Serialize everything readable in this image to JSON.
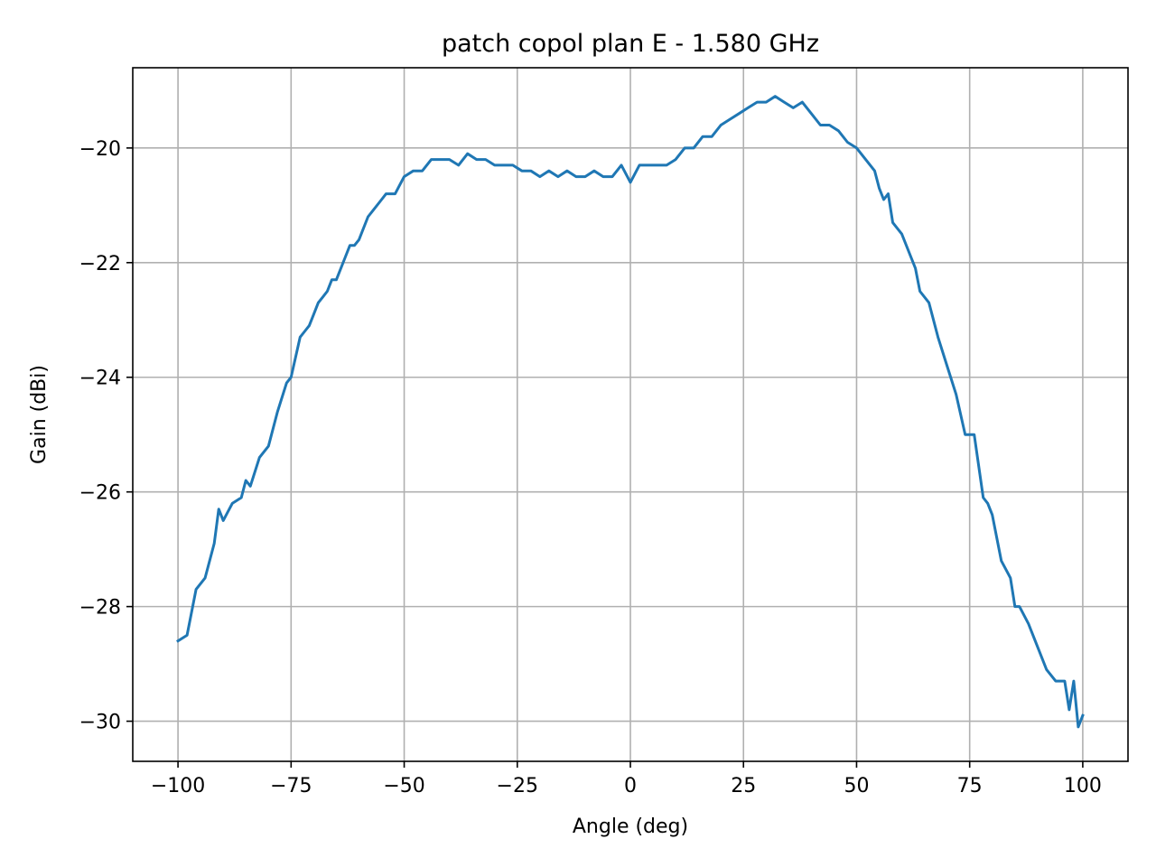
{
  "chart_data": {
    "type": "line",
    "title": "patch copol plan E - 1.580 GHz",
    "xlabel": "Angle (deg)",
    "ylabel": "Gain (dBi)",
    "xlim": [
      -110,
      110
    ],
    "ylim": [
      -30.7,
      -18.6
    ],
    "xticks": [
      -100,
      -75,
      -50,
      -25,
      0,
      25,
      50,
      75,
      100
    ],
    "xtick_labels": [
      "−100",
      "−75",
      "−50",
      "−25",
      "0",
      "25",
      "50",
      "75",
      "100"
    ],
    "yticks": [
      -30,
      -28,
      -26,
      -24,
      -22,
      -20
    ],
    "ytick_labels": [
      "−30",
      "−28",
      "−26",
      "−24",
      "−22",
      "−20"
    ],
    "grid": true,
    "series": [
      {
        "color": "#1f77b4",
        "x": [
          -100,
          -98,
          -96,
          -94,
          -92,
          -91,
          -90,
          -88,
          -86,
          -85,
          -84,
          -82,
          -80,
          -78,
          -76,
          -75,
          -73,
          -72,
          -71,
          -70,
          -69,
          -68,
          -67,
          -66,
          -65,
          -63,
          -62,
          -61,
          -60,
          -58,
          -57,
          -55,
          -54,
          -52,
          -50,
          -48,
          -46,
          -44,
          -42,
          -40,
          -38,
          -36,
          -34,
          -32,
          -30,
          -28,
          -26,
          -24,
          -22,
          -20,
          -18,
          -16,
          -14,
          -12,
          -10,
          -8,
          -6,
          -4,
          -2,
          0,
          2,
          4,
          6,
          8,
          10,
          12,
          14,
          16,
          18,
          20,
          22,
          24,
          26,
          28,
          30,
          32,
          34,
          36,
          38,
          40,
          42,
          44,
          46,
          48,
          50,
          52,
          54,
          55,
          56,
          57,
          58,
          60,
          62,
          63,
          64,
          66,
          68,
          70,
          72,
          74,
          76,
          78,
          79,
          80,
          82,
          84,
          85,
          86,
          88,
          90,
          92,
          94,
          96,
          97,
          98,
          99,
          100
        ],
        "values": [
          -28.6,
          -28.5,
          -27.7,
          -27.5,
          -26.9,
          -26.3,
          -26.5,
          -26.2,
          -26.1,
          -25.8,
          -25.9,
          -25.4,
          -25.2,
          -24.6,
          -24.1,
          -24.0,
          -23.3,
          -23.2,
          -23.1,
          -22.9,
          -22.7,
          -22.6,
          -22.5,
          -22.3,
          -22.3,
          -21.9,
          -21.7,
          -21.7,
          -21.6,
          -21.2,
          -21.1,
          -20.9,
          -20.8,
          -20.8,
          -20.5,
          -20.4,
          -20.4,
          -20.2,
          -20.2,
          -20.2,
          -20.3,
          -20.1,
          -20.2,
          -20.2,
          -20.3,
          -20.3,
          -20.3,
          -20.4,
          -20.4,
          -20.5,
          -20.4,
          -20.5,
          -20.4,
          -20.5,
          -20.5,
          -20.4,
          -20.5,
          -20.5,
          -20.3,
          -20.6,
          -20.3,
          -20.3,
          -20.3,
          -20.3,
          -20.2,
          -20.0,
          -20.0,
          -19.8,
          -19.8,
          -19.6,
          -19.5,
          -19.4,
          -19.3,
          -19.2,
          -19.2,
          -19.1,
          -19.2,
          -19.3,
          -19.2,
          -19.4,
          -19.6,
          -19.6,
          -19.7,
          -19.9,
          -20.0,
          -20.2,
          -20.4,
          -20.7,
          -20.9,
          -20.8,
          -21.3,
          -21.5,
          -21.9,
          -22.1,
          -22.5,
          -22.7,
          -23.3,
          -23.8,
          -24.3,
          -25.0,
          -25.0,
          -26.1,
          -26.2,
          -26.4,
          -27.2,
          -27.5,
          -28.0,
          -28.0,
          -28.3,
          -28.7,
          -29.1,
          -29.3,
          -29.3,
          -29.8,
          -29.3,
          -30.1,
          -29.9
        ]
      }
    ]
  }
}
